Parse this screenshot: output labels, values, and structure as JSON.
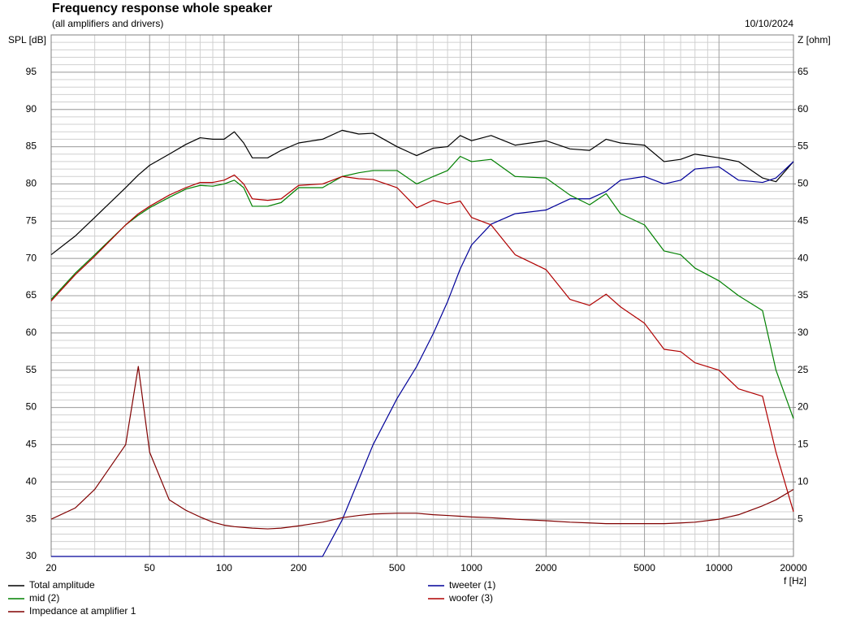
{
  "chart_data": {
    "type": "line",
    "title": "Frequency response whole speaker",
    "subtitle": "(all amplifiers and drivers)",
    "date": "10/10/2024",
    "ylabel": "SPL [dB]",
    "y2label": "Z [ohm]",
    "xlabel": "f [Hz]",
    "xscale": "log",
    "grid": true,
    "xlim": [
      20,
      20000
    ],
    "xticks": [
      20,
      50,
      100,
      200,
      500,
      1000,
      2000,
      5000,
      10000,
      20000
    ],
    "xminorticks": [
      30,
      40,
      60,
      70,
      80,
      90,
      300,
      400,
      600,
      700,
      800,
      900,
      3000,
      4000,
      6000,
      7000,
      8000,
      9000
    ],
    "ylim": [
      30,
      100
    ],
    "yticks": [
      30,
      35,
      40,
      45,
      50,
      55,
      60,
      65,
      70,
      75,
      80,
      85,
      90,
      95
    ],
    "y2lim": [
      0,
      70
    ],
    "y2ticks": [
      5,
      10,
      15,
      20,
      25,
      30,
      35,
      40,
      45,
      50,
      55,
      60,
      65
    ],
    "x": [
      20,
      25,
      30,
      40,
      45,
      50,
      60,
      70,
      80,
      90,
      100,
      110,
      120,
      130,
      150,
      170,
      200,
      250,
      300,
      350,
      400,
      500,
      600,
      700,
      800,
      900,
      1000,
      1200,
      1500,
      2000,
      2500,
      3000,
      3500,
      4000,
      5000,
      6000,
      7000,
      8000,
      10000,
      12000,
      15000,
      17000,
      20000
    ],
    "series": [
      {
        "name": "Total amplitude",
        "color": "#000000",
        "values": [
          70.5,
          73,
          75.5,
          79.5,
          81.2,
          82.5,
          84,
          85.3,
          86.2,
          86,
          86,
          87,
          85.5,
          83.5,
          83.5,
          84.5,
          85.5,
          86,
          87.2,
          86.7,
          86.8,
          85,
          83.8,
          84.8,
          85,
          86.5,
          85.8,
          86.5,
          85.2,
          85.8,
          84.7,
          84.5,
          86,
          85.5,
          85.2,
          83,
          83.3,
          84,
          83.5,
          83,
          80.8,
          80.3,
          83
        ]
      },
      {
        "name": "tweeter (1)",
        "color": "#000099",
        "values": [
          30,
          30,
          30,
          30,
          30,
          30,
          30,
          30,
          30,
          30,
          30,
          30,
          30,
          30,
          30,
          30,
          30,
          30,
          34.9,
          40.3,
          45,
          51.2,
          55.5,
          59.9,
          64.2,
          68.6,
          71.8,
          74.6,
          76,
          76.5,
          78,
          78,
          79,
          80.5,
          81,
          80,
          80.5,
          82,
          82.3,
          80.5,
          80.2,
          80.8,
          83
        ]
      },
      {
        "name": "mid (2)",
        "color": "#008000",
        "values": [
          64.5,
          68,
          70.5,
          74.5,
          75.8,
          76.8,
          78.2,
          79.3,
          79.8,
          79.7,
          80,
          80.5,
          79.5,
          77,
          77,
          77.5,
          79.5,
          79.5,
          81,
          81.5,
          81.8,
          81.8,
          80,
          81,
          81.8,
          83.7,
          83,
          83.3,
          81,
          80.8,
          78.5,
          77.2,
          78.7,
          76,
          74.5,
          71,
          70.5,
          68.7,
          67,
          65,
          63,
          55,
          48.5
        ]
      },
      {
        "name": "woofer (3)",
        "color": "#b00000",
        "values": [
          64.3,
          67.8,
          70.3,
          74.5,
          76,
          77,
          78.5,
          79.5,
          80.2,
          80.2,
          80.5,
          81.2,
          80,
          78,
          77.8,
          78,
          79.8,
          80,
          81,
          80.7,
          80.6,
          79.5,
          76.8,
          77.8,
          77.3,
          77.7,
          75.5,
          74.5,
          70.5,
          68.5,
          64.5,
          63.7,
          65.2,
          63.5,
          61.3,
          57.8,
          57.5,
          56,
          55,
          52.5,
          51.5,
          44,
          36
        ]
      },
      {
        "name": "Impedance at amplifier 1",
        "color": "#800000",
        "axis": "y2",
        "values": [
          5,
          6.5,
          9,
          15,
          25.5,
          14,
          7.6,
          6.2,
          5.3,
          4.6,
          4.2,
          4,
          3.9,
          3.8,
          3.7,
          3.8,
          4.1,
          4.6,
          5.2,
          5.5,
          5.7,
          5.8,
          5.8,
          5.6,
          5.5,
          5.4,
          5.3,
          5.2,
          5,
          4.8,
          4.6,
          4.5,
          4.4,
          4.4,
          4.4,
          4.4,
          4.5,
          4.6,
          5,
          5.6,
          6.8,
          7.6,
          9
        ]
      }
    ]
  }
}
